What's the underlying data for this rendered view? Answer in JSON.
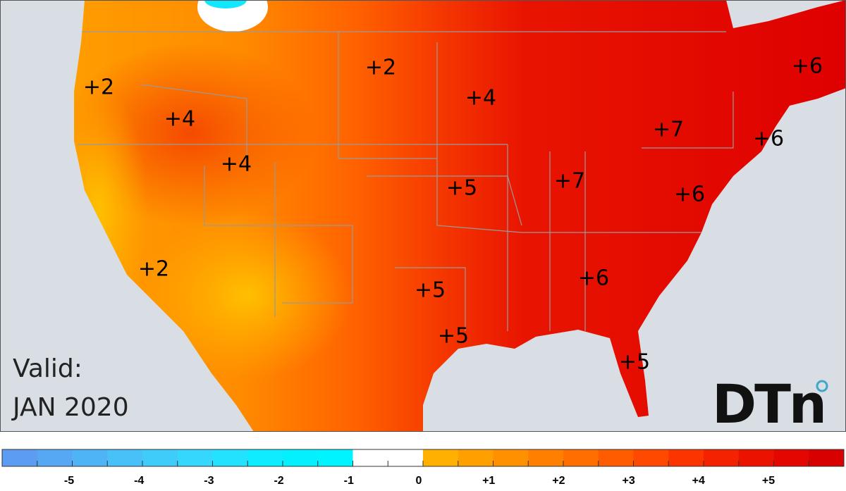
{
  "map": {
    "labels": [
      "+2",
      "+4",
      "+4",
      "+2",
      "+2",
      "+4",
      "+5",
      "+7",
      "+7",
      "+6",
      "+6",
      "+6",
      "+5",
      "+6",
      "+5",
      "+5"
    ],
    "valid_label": "Valid:",
    "date": "JAN 2020",
    "logo": "DTn"
  },
  "legend": {
    "ticks": [
      "-5",
      "-4",
      "-3",
      "-2",
      "-1",
      "0",
      "+1",
      "+2",
      "+3",
      "+4",
      "+5"
    ],
    "colors": [
      "#5c9cf2",
      "#56a8f4",
      "#4fb4f6",
      "#48c0f8",
      "#40ccfa",
      "#35d8fc",
      "#22e2fe",
      "#0eecff",
      "#05f0ff",
      "#00f4ff",
      "#ffffff",
      "#ffffff",
      "#ffb000",
      "#ffa000",
      "#ff9000",
      "#ff8000",
      "#ff6e00",
      "#ff5c00",
      "#ff4800",
      "#fb3400",
      "#f42200",
      "#ec1200",
      "#e40600",
      "#d80000"
    ]
  }
}
